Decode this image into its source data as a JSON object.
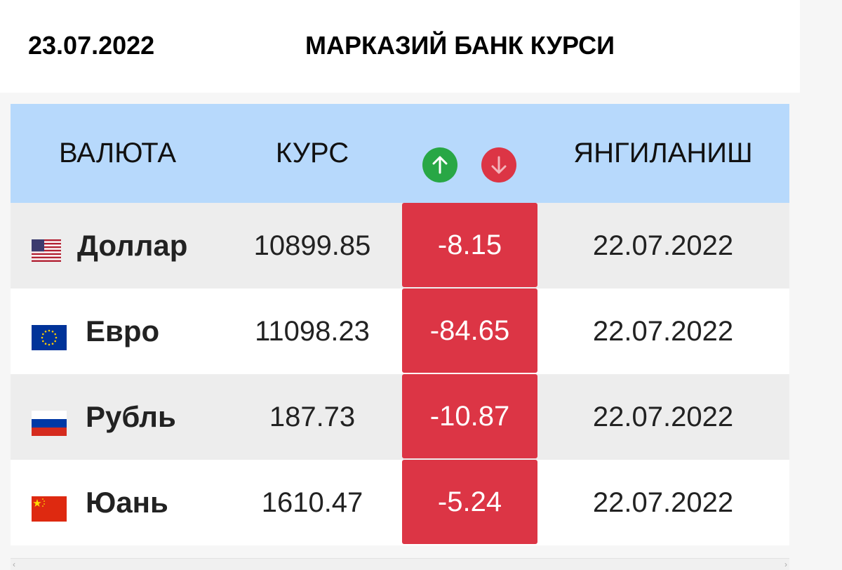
{
  "header": {
    "date": "23.07.2022",
    "title": "МАРКАЗИЙ БАНК КУРСИ"
  },
  "table": {
    "columns": {
      "currency": "ВАЛЮТА",
      "rate": "КУРС",
      "updated": "ЯНГИЛАНИШ"
    },
    "change_icons": [
      "arrow-up-icon",
      "arrow-down-icon"
    ],
    "rows": [
      {
        "flag": "us-flag-icon",
        "name": "Доллар",
        "rate": "10899.85",
        "change": "-8.15",
        "updated": "22.07.2022"
      },
      {
        "flag": "eu-flag-icon",
        "name": "Евро",
        "rate": "11098.23",
        "change": "-84.65",
        "updated": "22.07.2022"
      },
      {
        "flag": "ru-flag-icon",
        "name": "Рубль",
        "rate": "187.73",
        "change": "-10.87",
        "updated": "22.07.2022"
      },
      {
        "flag": "cn-flag-icon",
        "name": "Юань",
        "rate": "1610.47",
        "change": "-5.24",
        "updated": "22.07.2022"
      }
    ]
  },
  "colors": {
    "header_bg": "#b7d9fc",
    "up": "#28a745",
    "down": "#dc3545"
  }
}
